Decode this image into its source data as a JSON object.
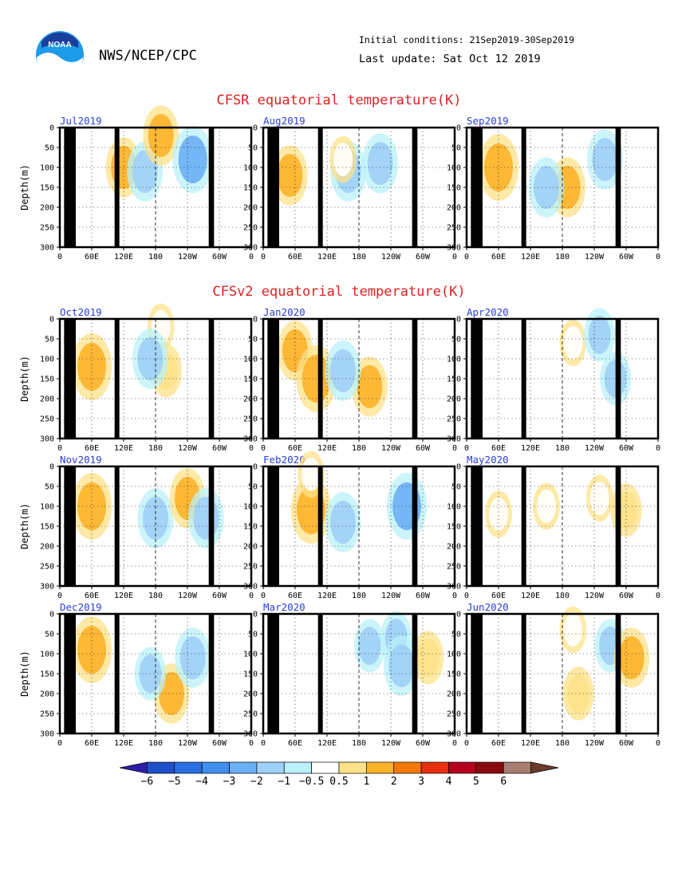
{
  "header": {
    "org_logo": "NOAA",
    "org_title": "NWS/NCEP/CPC",
    "initial_conditions": "Initial conditions: 21Sep2019-30Sep2019",
    "last_update": "Last update: Sat Oct 12 2019"
  },
  "sections": {
    "cfsr_title": "CFSR equatorial temperature(K)",
    "cfsv2_title": "CFSv2 equatorial temperature(K)"
  },
  "axis": {
    "ylabel": "Depth(m)",
    "yticks": [
      "0",
      "50",
      "100",
      "150",
      "200",
      "250",
      "300"
    ],
    "xticks": [
      "0",
      "60E",
      "120E",
      "180",
      "120W",
      "60W",
      "0"
    ]
  },
  "colors": {
    "title_red": "#e02020",
    "label_blue": "#2a3fd8",
    "land": "#000000"
  },
  "chart_data": {
    "type": "heatmap",
    "description_units": "temperature anomaly (K)",
    "panels": [
      {
        "label": "Jul2019",
        "group": "CFSR",
        "features": [
          {
            "lon": 120,
            "depth": 100,
            "value": 1.5
          },
          {
            "lon": 160,
            "depth": 110,
            "value": -1.5
          },
          {
            "lon": 190,
            "depth": 20,
            "value": 1.5
          },
          {
            "lon": 250,
            "depth": 80,
            "value": -2
          }
        ]
      },
      {
        "label": "Aug2019",
        "group": "CFSR",
        "features": [
          {
            "lon": 50,
            "depth": 120,
            "value": 1.5
          },
          {
            "lon": 160,
            "depth": 110,
            "value": -1.5
          },
          {
            "lon": 220,
            "depth": 90,
            "value": -1.5
          },
          {
            "lon": 150,
            "depth": 80,
            "value": 0.5
          }
        ]
      },
      {
        "label": "Sep2019",
        "group": "CFSR",
        "features": [
          {
            "lon": 60,
            "depth": 100,
            "value": 2
          },
          {
            "lon": 190,
            "depth": 150,
            "value": 1.5
          },
          {
            "lon": 150,
            "depth": 150,
            "value": -1.5
          },
          {
            "lon": 260,
            "depth": 80,
            "value": -1.5
          }
        ]
      },
      {
        "label": "Oct2019",
        "group": "CFSv2",
        "features": [
          {
            "lon": 60,
            "depth": 120,
            "value": 2
          },
          {
            "lon": 190,
            "depth": 20,
            "value": 0.5
          },
          {
            "lon": 200,
            "depth": 130,
            "value": 1
          },
          {
            "lon": 170,
            "depth": 100,
            "value": -1.5
          }
        ]
      },
      {
        "label": "Jan2020",
        "group": "CFSv2",
        "features": [
          {
            "lon": 60,
            "depth": 80,
            "value": 1.5
          },
          {
            "lon": 100,
            "depth": 150,
            "value": 2
          },
          {
            "lon": 200,
            "depth": 170,
            "value": 1.5
          },
          {
            "lon": 150,
            "depth": 130,
            "value": -1.5
          }
        ]
      },
      {
        "label": "Apr2020",
        "group": "CFSv2",
        "features": [
          {
            "lon": 200,
            "depth": 60,
            "value": 0.5
          },
          {
            "lon": 250,
            "depth": 40,
            "value": -1
          },
          {
            "lon": 280,
            "depth": 150,
            "value": -1
          }
        ]
      },
      {
        "label": "Nov2019",
        "group": "CFSv2",
        "features": [
          {
            "lon": 60,
            "depth": 100,
            "value": 2
          },
          {
            "lon": 180,
            "depth": 130,
            "value": -1.5
          },
          {
            "lon": 240,
            "depth": 80,
            "value": 1.5
          },
          {
            "lon": 275,
            "depth": 130,
            "value": -1.5
          }
        ]
      },
      {
        "label": "Feb2020",
        "group": "CFSv2",
        "features": [
          {
            "lon": 90,
            "depth": 110,
            "value": 2
          },
          {
            "lon": 150,
            "depth": 140,
            "value": -1.5
          },
          {
            "lon": 270,
            "depth": 100,
            "value": -2
          },
          {
            "lon": 90,
            "depth": 20,
            "value": 0.5
          }
        ]
      },
      {
        "label": "May2020",
        "group": "CFSv2",
        "features": [
          {
            "lon": 60,
            "depth": 120,
            "value": 0.5
          },
          {
            "lon": 150,
            "depth": 100,
            "value": 0.5
          },
          {
            "lon": 250,
            "depth": 80,
            "value": 0.5
          },
          {
            "lon": 300,
            "depth": 110,
            "value": 1
          }
        ]
      },
      {
        "label": "Dec2019",
        "group": "CFSv2",
        "features": [
          {
            "lon": 60,
            "depth": 90,
            "value": 2
          },
          {
            "lon": 210,
            "depth": 200,
            "value": 1.5
          },
          {
            "lon": 250,
            "depth": 110,
            "value": -1.5
          },
          {
            "lon": 170,
            "depth": 150,
            "value": -1
          }
        ]
      },
      {
        "label": "Mar2020",
        "group": "CFSv2",
        "features": [
          {
            "lon": 200,
            "depth": 80,
            "value": -1
          },
          {
            "lon": 250,
            "depth": 60,
            "value": -1
          },
          {
            "lon": 260,
            "depth": 130,
            "value": -1.5
          },
          {
            "lon": 310,
            "depth": 110,
            "value": 1
          }
        ]
      },
      {
        "label": "Jun2020",
        "group": "CFSv2",
        "features": [
          {
            "lon": 200,
            "depth": 40,
            "value": 0.5
          },
          {
            "lon": 210,
            "depth": 200,
            "value": 1
          },
          {
            "lon": 270,
            "depth": 80,
            "value": -1
          },
          {
            "lon": 310,
            "depth": 110,
            "value": 1.5
          }
        ]
      }
    ],
    "colorbar": {
      "labels": [
        "−6",
        "−5",
        "−4",
        "−3",
        "−2",
        "−1",
        "−0.5",
        "0.5",
        "1",
        "2",
        "3",
        "4",
        "5",
        "6"
      ],
      "colors": [
        "#2b1fa8",
        "#1f4fc8",
        "#2a6fe0",
        "#3f8ff0",
        "#6aaff5",
        "#9fd0f7",
        "#b9f2f8",
        "#ffffff",
        "#fde28a",
        "#fdb22a",
        "#f5790a",
        "#e8300f",
        "#b4001e",
        "#8a0a10",
        "#a87e73",
        "#6b3c2a"
      ]
    },
    "xlim": [
      0,
      360
    ],
    "ylim": [
      300,
      0
    ],
    "grid": true
  }
}
